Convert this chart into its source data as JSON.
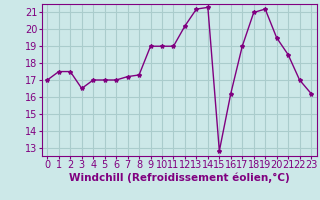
{
  "x": [
    0,
    1,
    2,
    3,
    4,
    5,
    6,
    7,
    8,
    9,
    10,
    11,
    12,
    13,
    14,
    15,
    16,
    17,
    18,
    19,
    20,
    21,
    22,
    23
  ],
  "y": [
    17,
    17.5,
    17.5,
    16.5,
    17,
    17,
    17,
    17.2,
    17.3,
    19,
    19,
    19,
    20.2,
    21.2,
    21.3,
    12.8,
    16.2,
    19,
    21,
    21.2,
    19.5,
    18.5,
    17,
    16.2
  ],
  "line_color": "#800080",
  "marker": "*",
  "marker_size": 3,
  "bg_color": "#cce8e8",
  "grid_color": "#aacccc",
  "xlabel": "Windchill (Refroidissement éolien,°C)",
  "xlabel_fontsize": 7.5,
  "tick_fontsize": 7,
  "ylim": [
    12.5,
    21.5
  ],
  "xlim": [
    -0.5,
    23.5
  ],
  "yticks": [
    13,
    14,
    15,
    16,
    17,
    18,
    19,
    20,
    21
  ],
  "xticks": [
    0,
    1,
    2,
    3,
    4,
    5,
    6,
    7,
    8,
    9,
    10,
    11,
    12,
    13,
    14,
    15,
    16,
    17,
    18,
    19,
    20,
    21,
    22,
    23
  ]
}
